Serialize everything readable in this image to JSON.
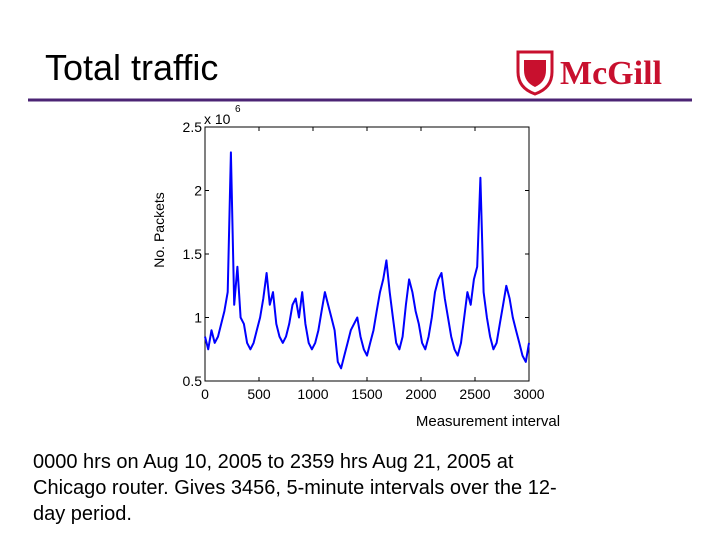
{
  "header": {
    "title": "Total traffic",
    "logo": "McGill"
  },
  "chart_data": {
    "type": "line",
    "ylabel": "No. Packets",
    "xlabel": "Measurement interval",
    "y_multiplier": "x 10",
    "y_exponent": "6",
    "xlim": [
      0,
      3000
    ],
    "xticks": [
      0,
      500,
      1000,
      1500,
      2000,
      2500,
      3000
    ],
    "ylim": [
      0.5,
      2.5
    ],
    "yticks": [
      0.5,
      1,
      1.5,
      2,
      2.5
    ],
    "x": [
      0,
      30,
      60,
      90,
      120,
      150,
      180,
      210,
      240,
      270,
      300,
      330,
      360,
      390,
      420,
      450,
      480,
      510,
      540,
      570,
      600,
      630,
      660,
      690,
      720,
      750,
      780,
      810,
      840,
      870,
      900,
      930,
      960,
      990,
      1020,
      1050,
      1080,
      1110,
      1140,
      1170,
      1200,
      1230,
      1260,
      1290,
      1320,
      1350,
      1380,
      1410,
      1440,
      1470,
      1500,
      1530,
      1560,
      1590,
      1620,
      1650,
      1680,
      1710,
      1740,
      1770,
      1800,
      1830,
      1860,
      1890,
      1920,
      1950,
      1980,
      2010,
      2040,
      2070,
      2100,
      2130,
      2160,
      2190,
      2220,
      2250,
      2280,
      2310,
      2340,
      2370,
      2400,
      2430,
      2460,
      2490,
      2520,
      2550,
      2580,
      2610,
      2640,
      2670,
      2700,
      2730,
      2760,
      2790,
      2820,
      2850,
      2880,
      2910,
      2940,
      2970,
      3000
    ],
    "series": [
      {
        "color": "#0000ff",
        "values": [
          0.85,
          0.75,
          0.9,
          0.8,
          0.85,
          0.95,
          1.05,
          1.2,
          2.3,
          1.1,
          1.4,
          1.0,
          0.95,
          0.8,
          0.75,
          0.8,
          0.9,
          1.0,
          1.15,
          1.35,
          1.1,
          1.2,
          0.95,
          0.85,
          0.8,
          0.85,
          0.95,
          1.1,
          1.15,
          1.0,
          1.2,
          0.95,
          0.8,
          0.75,
          0.8,
          0.9,
          1.05,
          1.2,
          1.1,
          1.0,
          0.9,
          0.65,
          0.6,
          0.7,
          0.8,
          0.9,
          0.95,
          1.0,
          0.85,
          0.75,
          0.7,
          0.8,
          0.9,
          1.05,
          1.2,
          1.3,
          1.45,
          1.2,
          1.0,
          0.8,
          0.75,
          0.85,
          1.1,
          1.3,
          1.2,
          1.05,
          0.95,
          0.8,
          0.75,
          0.85,
          1.0,
          1.2,
          1.3,
          1.35,
          1.15,
          1.0,
          0.85,
          0.75,
          0.7,
          0.8,
          1.0,
          1.2,
          1.1,
          1.3,
          1.4,
          2.1,
          1.2,
          1.0,
          0.85,
          0.75,
          0.8,
          0.95,
          1.1,
          1.25,
          1.15,
          1.0,
          0.9,
          0.8,
          0.7,
          0.65,
          0.8
        ]
      }
    ]
  },
  "caption": {
    "lines": [
      "0000 hrs on Aug 10, 2005 to 2359 hrs Aug 21, 2005 at",
      "Chicago router.  Gives 3456, 5-minute intervals over the 12-",
      "day period."
    ]
  }
}
